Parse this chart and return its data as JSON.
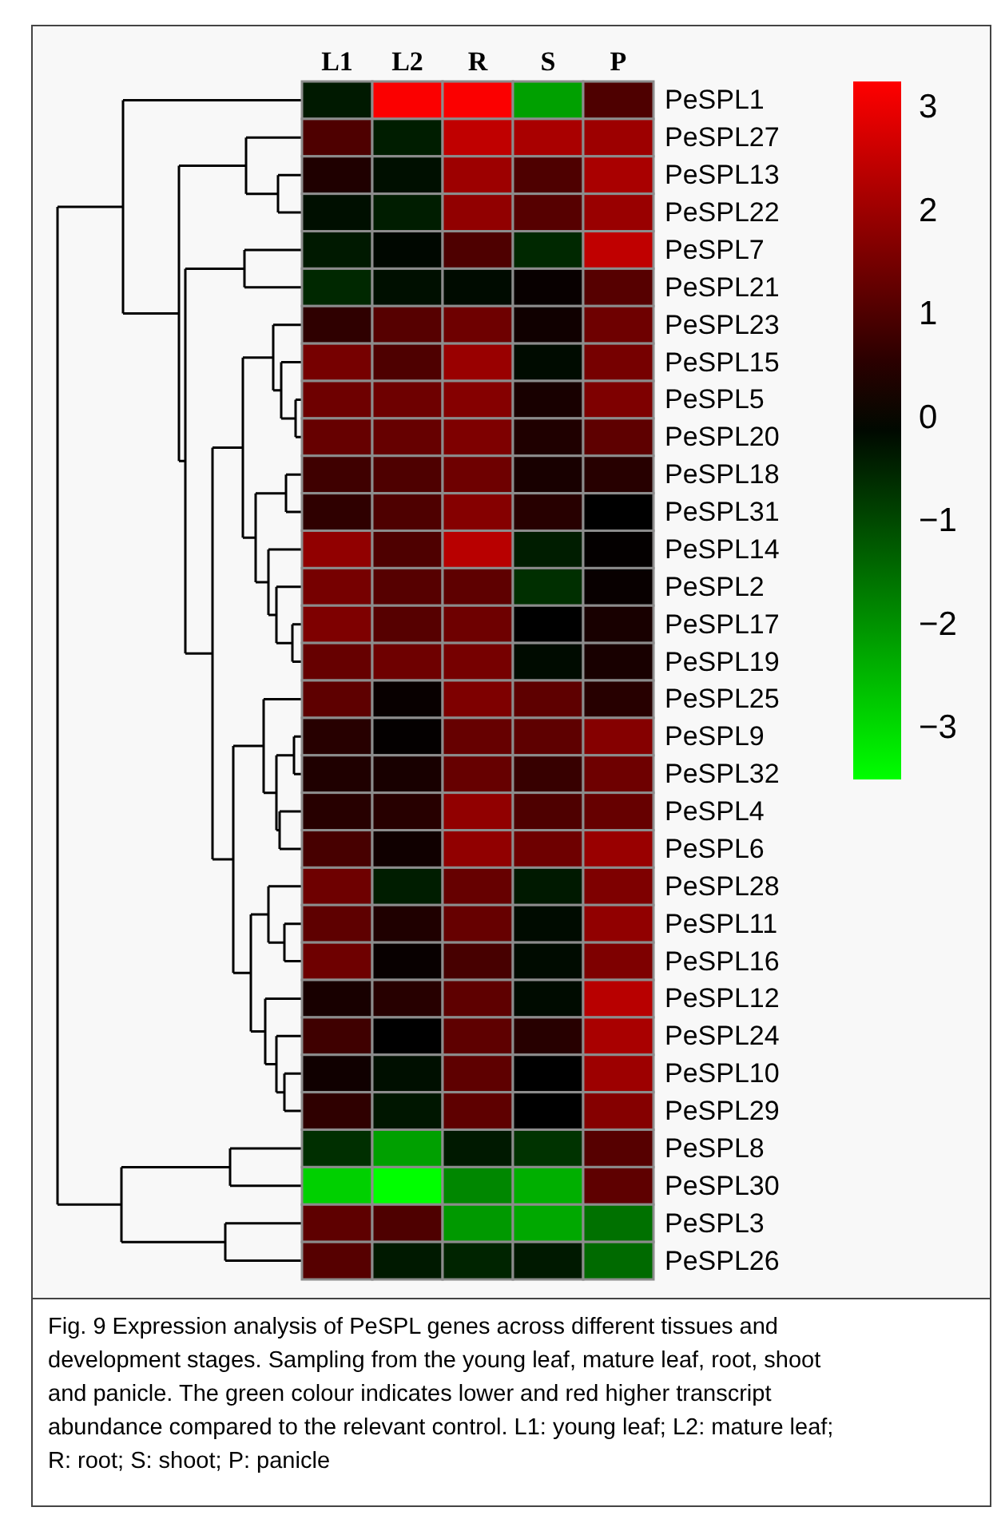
{
  "chart_data": {
    "type": "heatmap",
    "categories": [
      "L1",
      "L2",
      "R",
      "S",
      "P"
    ],
    "y_categories": [
      "PeSPL1",
      "PeSPL27",
      "PeSPL13",
      "PeSPL22",
      "PeSPL7",
      "PeSPL21",
      "PeSPL23",
      "PeSPL15",
      "PeSPL5",
      "PeSPL20",
      "PeSPL18",
      "PeSPL31",
      "PeSPL14",
      "PeSPL2",
      "PeSPL17",
      "PeSPL19",
      "PeSPL25",
      "PeSPL9",
      "PeSPL32",
      "PeSPL4",
      "PeSPL6",
      "PeSPL28",
      "PeSPL11",
      "PeSPL16",
      "PeSPL12",
      "PeSPL24",
      "PeSPL10",
      "PeSPL29",
      "PeSPL8",
      "PeSPL30",
      "PeSPL3",
      "PeSPL26"
    ],
    "cells": [
      [
        -0.35,
        3.2,
        3.2,
        -2.2,
        1.0
      ],
      [
        1.0,
        -0.4,
        2.45,
        2.15,
        2.0
      ],
      [
        0.4,
        -0.2,
        2.0,
        1.0,
        2.15
      ],
      [
        -0.2,
        -0.4,
        1.85,
        1.1,
        1.95
      ],
      [
        -0.35,
        -0.1,
        1.0,
        -0.55,
        2.45
      ],
      [
        -0.55,
        -0.2,
        -0.15,
        0.1,
        1.1
      ],
      [
        0.6,
        1.1,
        1.4,
        0.2,
        1.4
      ],
      [
        1.5,
        1.0,
        1.95,
        -0.15,
        1.5
      ],
      [
        1.4,
        1.4,
        1.7,
        0.3,
        1.6
      ],
      [
        1.3,
        1.3,
        1.6,
        0.4,
        1.2
      ],
      [
        0.8,
        1.0,
        1.4,
        0.3,
        0.5
      ],
      [
        0.6,
        1.0,
        1.7,
        0.5,
        0
      ],
      [
        1.85,
        1.0,
        2.35,
        -0.4,
        0.05
      ],
      [
        1.5,
        1.1,
        1.2,
        -0.65,
        0.1
      ],
      [
        1.6,
        1.1,
        1.4,
        0,
        0.3
      ],
      [
        1.3,
        1.4,
        1.5,
        -0.15,
        0.3
      ],
      [
        1.2,
        0.1,
        1.6,
        1.2,
        0.5
      ],
      [
        0.5,
        0.05,
        1.3,
        1.2,
        1.7
      ],
      [
        0.4,
        0.3,
        1.3,
        0.7,
        1.4
      ],
      [
        0.5,
        0.5,
        1.85,
        1.0,
        1.3
      ],
      [
        0.9,
        0.2,
        1.85,
        1.4,
        1.95
      ],
      [
        1.4,
        -0.4,
        1.3,
        -0.35,
        1.6
      ],
      [
        1.2,
        0.4,
        1.3,
        -0.15,
        1.85
      ],
      [
        1.4,
        0.1,
        0.9,
        -0.15,
        1.6
      ],
      [
        0.3,
        0.5,
        1.2,
        -0.15,
        2.35
      ],
      [
        0.8,
        0,
        1.2,
        0.5,
        2.15
      ],
      [
        0.2,
        -0.2,
        1.2,
        0,
        2.0
      ],
      [
        0.6,
        -0.3,
        1.2,
        0,
        1.7
      ],
      [
        -0.65,
        -2.2,
        -0.35,
        -0.7,
        1.1
      ],
      [
        -2.85,
        -3.5,
        -1.85,
        -2.4,
        1.2
      ],
      [
        1.2,
        1.0,
        -2.1,
        -2.3,
        -1.55
      ],
      [
        1.1,
        -0.35,
        -0.5,
        -0.35,
        -1.45
      ]
    ],
    "clim": [
      -3.5,
      3.25
    ],
    "cticks": [
      3,
      2,
      1,
      0,
      {
        "value": -1,
        "label": "−1"
      },
      {
        "value": -2,
        "label": "−2"
      },
      {
        "value": -3,
        "label": "−3"
      }
    ],
    "annotations": [
      "Fig. 9 Expression analysis of PeSPL genes across different tissues and development stages. Sampling from the young leaf, mature leaf, root, shoot and panicle. The green colour indicates lower and red higher transcript abundance compared to the relevant control. L1: young leaf; L2: mature leaf; R: root; S: shoot; P: panicle"
    ]
  }
}
